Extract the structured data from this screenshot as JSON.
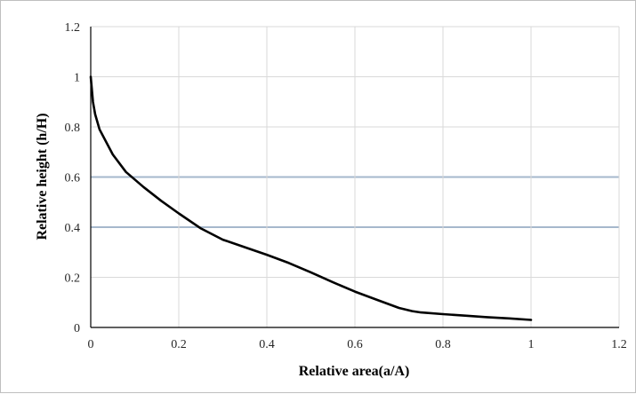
{
  "chart_data": {
    "type": "line",
    "title": "",
    "xlabel": "Relative area(a/A)",
    "ylabel": "Relative height (h/H)",
    "xlim": [
      0,
      1.2
    ],
    "ylim": [
      0,
      1.2
    ],
    "xticks": [
      "0",
      "0.2",
      "0.4",
      "0.6",
      "0.8",
      "1",
      "1.2"
    ],
    "yticks": [
      "0",
      "0.2",
      "0.4",
      "0.6",
      "0.8",
      "1",
      "1.2"
    ],
    "grid": true,
    "legend": "none",
    "series": [
      {
        "color": "#000000",
        "x": [
          0,
          0.005,
          0.01,
          0.02,
          0.05,
          0.08,
          0.12,
          0.16,
          0.2,
          0.25,
          0.3,
          0.35,
          0.4,
          0.45,
          0.5,
          0.55,
          0.6,
          0.65,
          0.7,
          0.73,
          0.75,
          0.8,
          0.85,
          0.9,
          0.95,
          1.0
        ],
        "y": [
          1.0,
          0.9,
          0.85,
          0.79,
          0.69,
          0.62,
          0.56,
          0.505,
          0.455,
          0.395,
          0.35,
          0.32,
          0.29,
          0.257,
          0.22,
          0.18,
          0.143,
          0.11,
          0.078,
          0.065,
          0.06,
          0.053,
          0.047,
          0.041,
          0.036,
          0.03
        ]
      }
    ]
  }
}
